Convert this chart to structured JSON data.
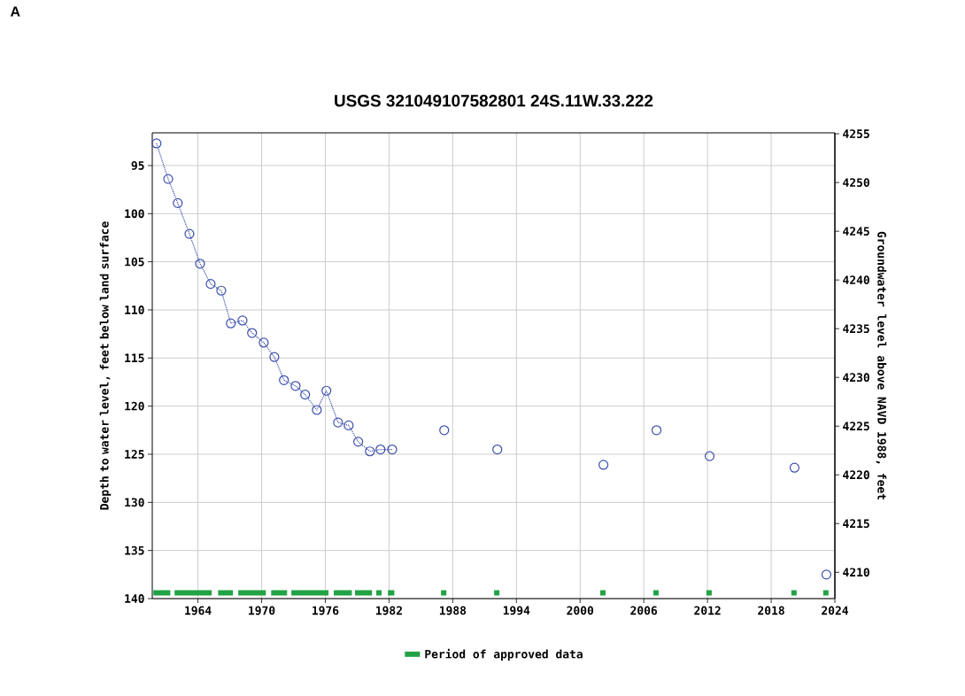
{
  "chart_data": {
    "type": "line",
    "title": "USGS 321049107582801 24S.11W.33.222",
    "annotations": [
      "A"
    ],
    "xlim": [
      1959.7,
      2024
    ],
    "xticks": [
      1964,
      1970,
      1976,
      1982,
      1988,
      1994,
      2000,
      2006,
      2012,
      2018,
      2024
    ],
    "ylim": [
      140,
      91.6
    ],
    "yticks": [
      95,
      100,
      105,
      110,
      115,
      120,
      125,
      130,
      135,
      140
    ],
    "ylabel": "Depth to water level, feet below land surface",
    "y2lim": [
      4207.3,
      4255.1
    ],
    "y2ticks": [
      4210,
      4215,
      4220,
      4225,
      4230,
      4235,
      4240,
      4245,
      4250,
      4255
    ],
    "y2label": "Groundwater level above NAVD 1988, feet",
    "grid": true,
    "legend": "bottom",
    "series": [
      {
        "color": "#3b4fae",
        "marker": "circle",
        "line_style": "dotted",
        "x": [
          1960.1,
          1961.2,
          1962.1,
          1963.2,
          1964.2,
          1965.2,
          1966.2,
          1967.1,
          1968.2,
          1969.1,
          1970.2,
          1971.2,
          1972.1,
          1973.2,
          1974.1,
          1975.2,
          1976.1,
          1977.2,
          1978.2,
          1979.1,
          1980.2,
          1981.2,
          1982.3,
          1985,
          1987.2,
          1990,
          1992.2,
          1997,
          2002.2,
          2005,
          2007.2,
          2010,
          2012.2,
          2016,
          2020.2,
          2022,
          2023.2
        ],
        "values": [
          92.7,
          96.4,
          98.9,
          102.1,
          105.2,
          107.3,
          108.0,
          111.4,
          111.1,
          112.4,
          113.4,
          114.9,
          117.3,
          117.9,
          118.8,
          120.4,
          118.4,
          121.7,
          122.0,
          123.7,
          124.7,
          124.5,
          124.5,
          null,
          122.5,
          null,
          124.5,
          null,
          126.1,
          null,
          122.5,
          null,
          125.2,
          null,
          126.4,
          null,
          137.5
        ]
      },
      {
        "name": "Period of approved data",
        "color": "#21a345",
        "line_style": "solid",
        "marker": "none",
        "x": [
          1959.8,
          1961.4,
          1961.6,
          1961.8,
          1965.3,
          1965.6,
          1965.9,
          1967.3,
          1967.5,
          1967.8,
          1970.4,
          1970.6,
          1970.9,
          1972.4,
          1972.6,
          1972.8,
          1976.3,
          1976.5,
          1976.8,
          1978.5,
          1978.6,
          1978.8,
          1980.4,
          1980.6,
          1980.8,
          1981.3,
          1981.6,
          1981.9,
          1982.5,
          1984,
          1986.9,
          1987.4,
          1990,
          1991.9,
          1992.4,
          1997,
          2001.9,
          2002.4,
          2005,
          2006.9,
          2007.4,
          2010,
          2011.9,
          2012.4,
          2016,
          2019.9,
          2020.4,
          2022,
          2022.9,
          2023.4
        ],
        "values": [
          139.4,
          139.4,
          null,
          139.4,
          139.4,
          null,
          139.4,
          139.4,
          null,
          139.4,
          139.4,
          null,
          139.4,
          139.4,
          null,
          139.4,
          139.4,
          null,
          139.4,
          139.4,
          null,
          139.4,
          139.4,
          null,
          139.4,
          139.4,
          null,
          139.4,
          139.4,
          null,
          139.4,
          139.4,
          null,
          139.4,
          139.4,
          null,
          139.4,
          139.4,
          null,
          139.4,
          139.4,
          null,
          139.4,
          139.4,
          null,
          139.4,
          139.4,
          null,
          139.4,
          139.4
        ]
      }
    ]
  }
}
